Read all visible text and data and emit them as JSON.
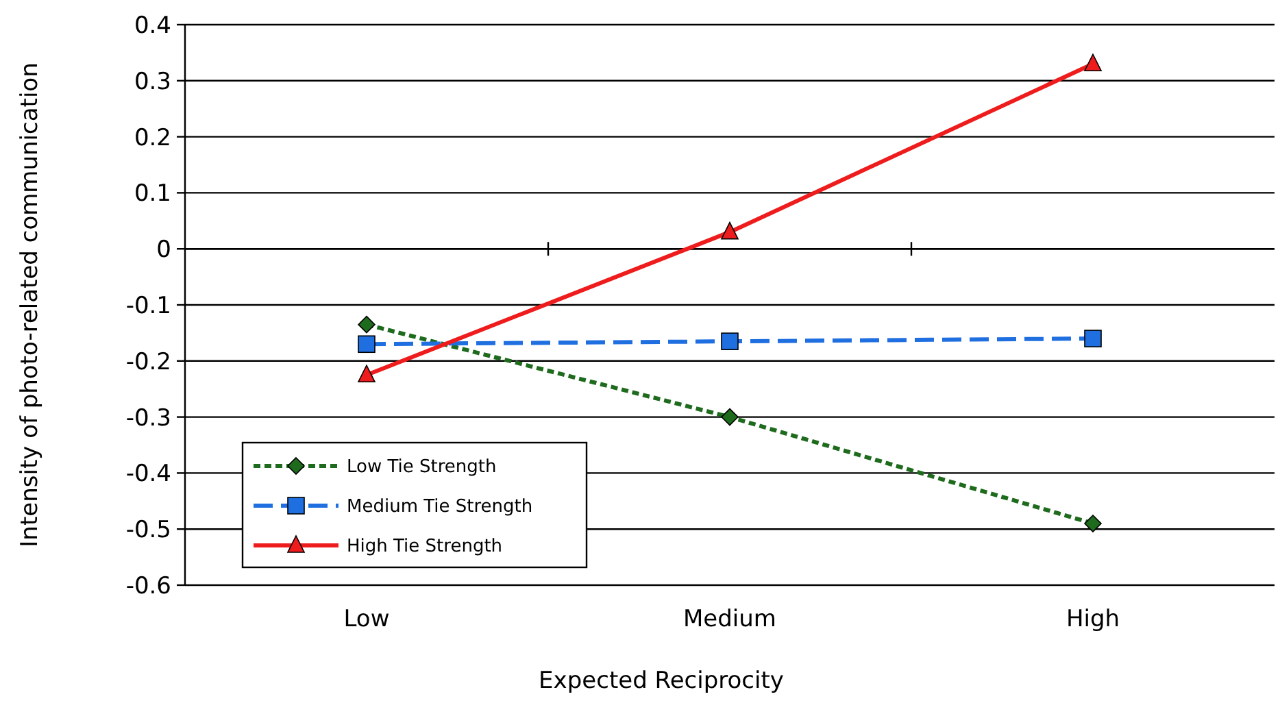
{
  "chart_data": {
    "type": "line",
    "xlabel": "Expected Reciprocity",
    "ylabel": "Intensity of photo-related communication",
    "categories": [
      "Low",
      "Medium",
      "High"
    ],
    "ylim": [
      -0.6,
      0.4
    ],
    "yticks": [
      -0.6,
      -0.5,
      -0.4,
      -0.3,
      -0.2,
      -0.1,
      0,
      0.1,
      0.2,
      0.3,
      0.4
    ],
    "grid": "y",
    "legend": "bottom left",
    "series": [
      {
        "name": "Low Tie Strength",
        "color": "#1e6b1e",
        "values": [
          -0.135,
          -0.3,
          -0.49
        ],
        "marker": "diamond",
        "line_style": "dotted"
      },
      {
        "name": "Medium Tie Strength",
        "color": "#1f6fe0",
        "values": [
          -0.17,
          -0.165,
          -0.16
        ],
        "marker": "square",
        "line_style": "dashed"
      },
      {
        "name": "High Tie Strength",
        "color": "#ee1c1c",
        "values": [
          -0.225,
          0.03,
          0.33
        ],
        "marker": "triangle",
        "line_style": "solid"
      }
    ]
  }
}
